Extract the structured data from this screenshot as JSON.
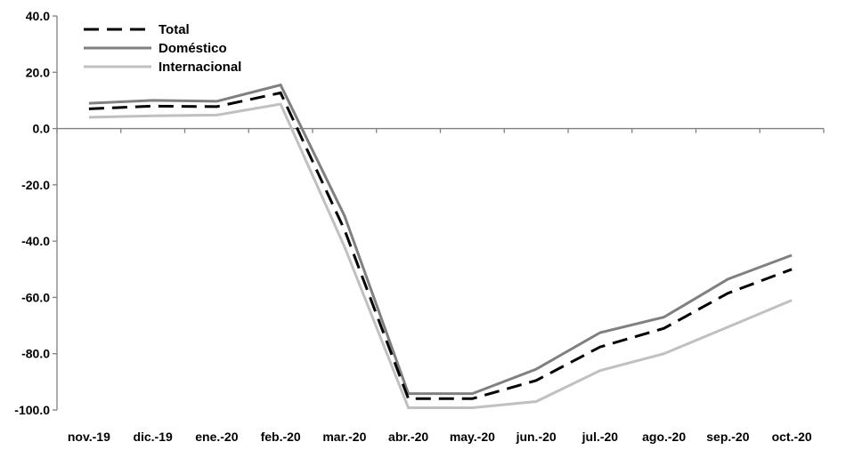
{
  "chart_data": {
    "type": "line",
    "title": "",
    "xlabel": "",
    "ylabel": "",
    "categories": [
      "nov.-19",
      "dic.-19",
      "ene.-20",
      "feb.-20",
      "mar.-20",
      "abr.-20",
      "may.-20",
      "jun.-20",
      "jul.-20",
      "ago.-20",
      "sep.-20",
      "oct.-20"
    ],
    "ylim": [
      -100,
      40
    ],
    "yticks": [
      40,
      20,
      0,
      -20,
      -40,
      -60,
      -80,
      -100
    ],
    "ytick_labels": [
      "40.0",
      "20.0",
      "0.0",
      "-20.0",
      "-40.0",
      "-60.0",
      "-80.0",
      "-100.0"
    ],
    "grid": false,
    "legend": "top-left",
    "series": [
      {
        "name": "Total",
        "color": "#000000",
        "dash": "dashed",
        "values": [
          7.0,
          8.0,
          7.8,
          12.7,
          -36.0,
          -96.0,
          -96.0,
          -89.5,
          -77.6,
          -71.0,
          -58.5,
          -50.0
        ]
      },
      {
        "name": "Doméstico",
        "color": "#808080",
        "dash": "solid",
        "values": [
          9.0,
          10.0,
          9.7,
          15.5,
          -31.0,
          -94.2,
          -94.2,
          -85.5,
          -72.5,
          -67.0,
          -53.5,
          -45.0
        ]
      },
      {
        "name": "Internacional",
        "color": "#c0c0c0",
        "dash": "solid",
        "values": [
          4.0,
          4.5,
          4.8,
          8.7,
          -42.0,
          -99.2,
          -99.2,
          -97.0,
          -86.0,
          -80.0,
          -70.5,
          -61.0
        ]
      }
    ]
  }
}
